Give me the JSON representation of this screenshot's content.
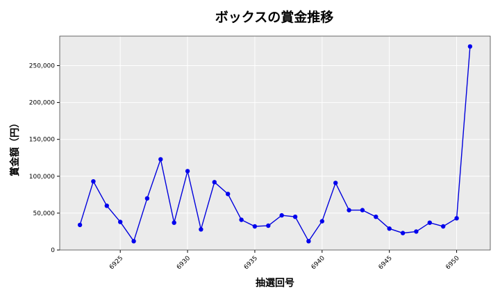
{
  "chart_data": {
    "type": "line",
    "title": "ボックスの賞金推移",
    "xlabel": "抽選回号",
    "ylabel": "賞金額（円）",
    "grid": true,
    "colors": {
      "line": "#0000dd",
      "marker": "#0000ee",
      "plot_bg": "#ebebeb",
      "grid": "#ffffff"
    },
    "xlim": [
      6920.5,
      6952.5
    ],
    "ylim": [
      0,
      290000
    ],
    "x_ticks": [
      6925,
      6930,
      6935,
      6940,
      6945,
      6950
    ],
    "x_tick_labels": [
      "6925",
      "6930",
      "6935",
      "6940",
      "6945",
      "6950"
    ],
    "y_ticks": [
      0,
      50000,
      100000,
      150000,
      200000,
      250000
    ],
    "y_tick_labels": [
      "0",
      "50,000",
      "100,000",
      "150,000",
      "200,000",
      "250,000"
    ],
    "series": [
      {
        "x": [
          6922,
          6923,
          6924,
          6925,
          6926,
          6927,
          6928,
          6929,
          6930,
          6931,
          6932,
          6933,
          6934,
          6935,
          6936,
          6937,
          6938,
          6939,
          6940,
          6941,
          6942,
          6943,
          6944,
          6945,
          6946,
          6947,
          6948,
          6949,
          6950,
          6951
        ],
        "y": [
          34000,
          93000,
          60000,
          38000,
          12000,
          70000,
          123000,
          37000,
          107000,
          28000,
          92000,
          76000,
          41000,
          32000,
          33000,
          47000,
          45000,
          12000,
          39000,
          91000,
          54000,
          54000,
          45000,
          29000,
          23000,
          25000,
          37000,
          32000,
          43000,
          276000
        ]
      }
    ]
  }
}
